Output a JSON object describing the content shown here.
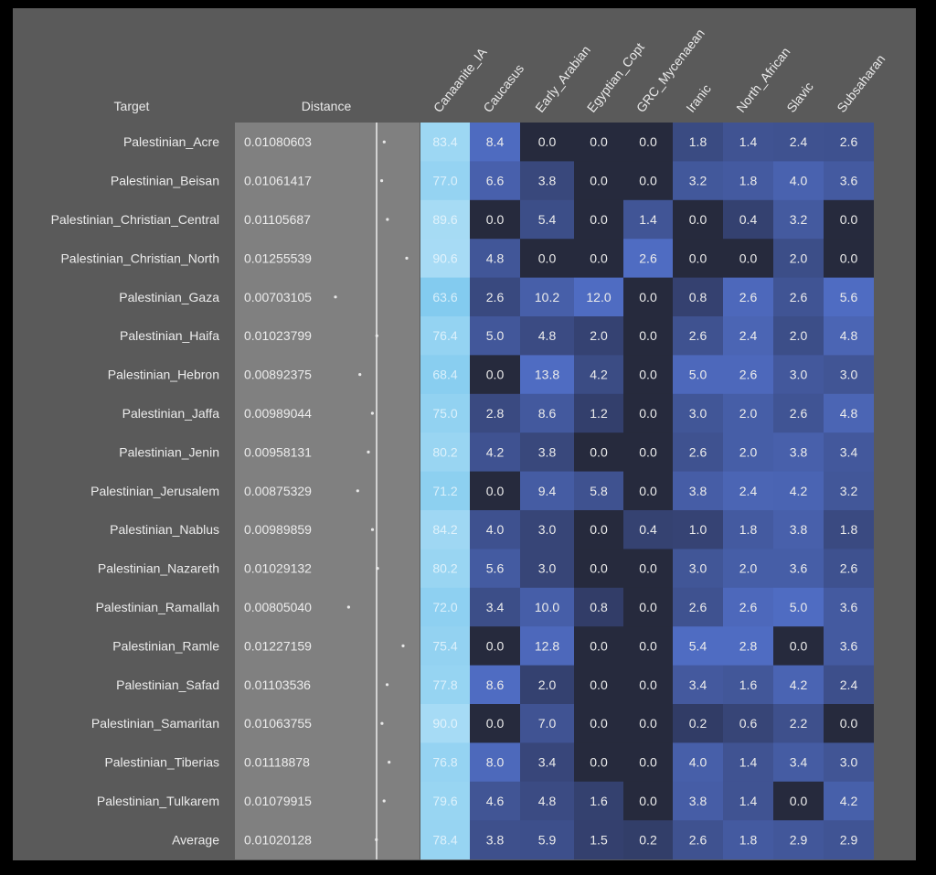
{
  "chart_data": {
    "type": "table",
    "headers": {
      "target": "Target",
      "distance": "Distance",
      "components": [
        "Canaanite_IA",
        "Caucasus",
        "Early_Arabian",
        "Egyptian_Copt",
        "GRC_Mycenaean",
        "Iranic",
        "North_African",
        "Slavic",
        "Subsaharan"
      ]
    },
    "rows": [
      {
        "target": "Palestinian_Acre",
        "distance": "0.01080603",
        "values": [
          "83.4",
          "8.4",
          "0.0",
          "0.0",
          "0.0",
          "1.8",
          "1.4",
          "2.4",
          "2.6"
        ]
      },
      {
        "target": "Palestinian_Beisan",
        "distance": "0.01061417",
        "values": [
          "77.0",
          "6.6",
          "3.8",
          "0.0",
          "0.0",
          "3.2",
          "1.8",
          "4.0",
          "3.6"
        ]
      },
      {
        "target": "Palestinian_Christian_Central",
        "distance": "0.01105687",
        "values": [
          "89.6",
          "0.0",
          "5.4",
          "0.0",
          "1.4",
          "0.0",
          "0.4",
          "3.2",
          "0.0"
        ]
      },
      {
        "target": "Palestinian_Christian_North",
        "distance": "0.01255539",
        "values": [
          "90.6",
          "4.8",
          "0.0",
          "0.0",
          "2.6",
          "0.0",
          "0.0",
          "2.0",
          "0.0"
        ]
      },
      {
        "target": "Palestinian_Gaza",
        "distance": "0.00703105",
        "values": [
          "63.6",
          "2.6",
          "10.2",
          "12.0",
          "0.0",
          "0.8",
          "2.6",
          "2.6",
          "5.6"
        ]
      },
      {
        "target": "Palestinian_Haifa",
        "distance": "0.01023799",
        "values": [
          "76.4",
          "5.0",
          "4.8",
          "2.0",
          "0.0",
          "2.6",
          "2.4",
          "2.0",
          "4.8"
        ]
      },
      {
        "target": "Palestinian_Hebron",
        "distance": "0.00892375",
        "values": [
          "68.4",
          "0.0",
          "13.8",
          "4.2",
          "0.0",
          "5.0",
          "2.6",
          "3.0",
          "3.0"
        ]
      },
      {
        "target": "Palestinian_Jaffa",
        "distance": "0.00989044",
        "values": [
          "75.0",
          "2.8",
          "8.6",
          "1.2",
          "0.0",
          "3.0",
          "2.0",
          "2.6",
          "4.8"
        ]
      },
      {
        "target": "Palestinian_Jenin",
        "distance": "0.00958131",
        "values": [
          "80.2",
          "4.2",
          "3.8",
          "0.0",
          "0.0",
          "2.6",
          "2.0",
          "3.8",
          "3.4"
        ]
      },
      {
        "target": "Palestinian_Jerusalem",
        "distance": "0.00875329",
        "values": [
          "71.2",
          "0.0",
          "9.4",
          "5.8",
          "0.0",
          "3.8",
          "2.4",
          "4.2",
          "3.2"
        ]
      },
      {
        "target": "Palestinian_Nablus",
        "distance": "0.00989859",
        "values": [
          "84.2",
          "4.0",
          "3.0",
          "0.0",
          "0.4",
          "1.0",
          "1.8",
          "3.8",
          "1.8"
        ]
      },
      {
        "target": "Palestinian_Nazareth",
        "distance": "0.01029132",
        "values": [
          "80.2",
          "5.6",
          "3.0",
          "0.0",
          "0.0",
          "3.0",
          "2.0",
          "3.6",
          "2.6"
        ]
      },
      {
        "target": "Palestinian_Ramallah",
        "distance": "0.00805040",
        "values": [
          "72.0",
          "3.4",
          "10.0",
          "0.8",
          "0.0",
          "2.6",
          "2.6",
          "5.0",
          "3.6"
        ]
      },
      {
        "target": "Palestinian_Ramle",
        "distance": "0.01227159",
        "values": [
          "75.4",
          "0.0",
          "12.8",
          "0.0",
          "0.0",
          "5.4",
          "2.8",
          "0.0",
          "3.6"
        ]
      },
      {
        "target": "Palestinian_Safad",
        "distance": "0.01103536",
        "values": [
          "77.8",
          "8.6",
          "2.0",
          "0.0",
          "0.0",
          "3.4",
          "1.6",
          "4.2",
          "2.4"
        ]
      },
      {
        "target": "Palestinian_Samaritan",
        "distance": "0.01063755",
        "values": [
          "90.0",
          "0.0",
          "7.0",
          "0.0",
          "0.0",
          "0.2",
          "0.6",
          "2.2",
          "0.0"
        ]
      },
      {
        "target": "Palestinian_Tiberias",
        "distance": "0.01118878",
        "values": [
          "76.8",
          "8.0",
          "3.4",
          "0.0",
          "0.0",
          "4.0",
          "1.4",
          "3.4",
          "3.0"
        ]
      },
      {
        "target": "Palestinian_Tulkarem",
        "distance": "0.01079915",
        "values": [
          "79.6",
          "4.6",
          "4.8",
          "1.6",
          "0.0",
          "3.8",
          "1.4",
          "0.0",
          "4.2"
        ]
      },
      {
        "target": "Average",
        "distance": "0.01020128",
        "values": [
          "78.4",
          "3.8",
          "5.9",
          "1.5",
          "0.2",
          "2.6",
          "1.8",
          "2.9",
          "2.9"
        ]
      }
    ],
    "colors": {
      "panel": "#5a5a5a",
      "distance_column": "#808080",
      "canaanite_low": "#7ec9ee",
      "canaanite_high": "#a9dcf5",
      "cell_zero": "#262a3d",
      "cell_low": "#303a62",
      "cell_high": "#4f6cc2",
      "text": "#ececec"
    }
  }
}
